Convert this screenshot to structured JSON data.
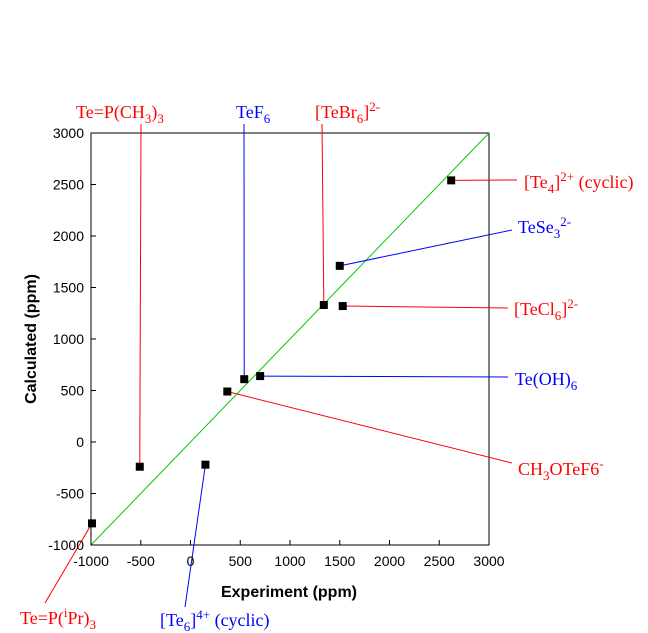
{
  "chart_data": {
    "type": "scatter",
    "xlabel": "Experiment  (ppm)",
    "ylabel": "Calculated  (ppm)",
    "xlim": [
      -1000,
      3000
    ],
    "ylim": [
      -1000,
      3000
    ],
    "xticks": [
      -1000,
      -500,
      0,
      500,
      1000,
      1500,
      2000,
      2500,
      3000
    ],
    "yticks": [
      -1000,
      -500,
      0,
      500,
      1000,
      1500,
      2000,
      2500,
      3000
    ],
    "reference_line": {
      "from": [
        -1000,
        -1000
      ],
      "to": [
        3000,
        3000
      ],
      "color": "#00cc00"
    },
    "points": [
      {
        "id": "te_pipr3",
        "x": -990,
        "y": -790
      },
      {
        "id": "te_pch3",
        "x": -510,
        "y": -240
      },
      {
        "id": "te6",
        "x": 150,
        "y": -220
      },
      {
        "id": "ch3otef6",
        "x": 370,
        "y": 490
      },
      {
        "id": "tef6",
        "x": 540,
        "y": 610
      },
      {
        "id": "teoh6",
        "x": 700,
        "y": 640
      },
      {
        "id": "tebr6",
        "x": 1340,
        "y": 1330
      },
      {
        "id": "tese3",
        "x": 1500,
        "y": 1710
      },
      {
        "id": "tecl6",
        "x": 1530,
        "y": 1320
      },
      {
        "id": "te4",
        "x": 2620,
        "y": 2540
      }
    ],
    "labels": [
      {
        "point": "te_pch3",
        "color": "#ff0000",
        "parts": [
          [
            "Te=P(CH",
            ""
          ],
          [
            "3",
            "sub"
          ],
          [
            ")",
            ""
          ],
          [
            "3",
            "sub"
          ]
        ]
      },
      {
        "point": "tef6",
        "color": "#0000ff",
        "parts": [
          [
            "TeF",
            ""
          ],
          [
            "6",
            "sub"
          ]
        ]
      },
      {
        "point": "tebr6",
        "color": "#ff0000",
        "parts": [
          [
            "[TeBr",
            ""
          ],
          [
            "6",
            "sub"
          ],
          [
            "]",
            ""
          ],
          [
            "2-",
            "sup"
          ]
        ]
      },
      {
        "point": "te4",
        "color": "#ff0000",
        "parts": [
          [
            "[Te",
            ""
          ],
          [
            "4",
            "sub"
          ],
          [
            "]",
            ""
          ],
          [
            "2+",
            "sup"
          ],
          [
            " (cyclic)",
            ""
          ]
        ]
      },
      {
        "point": "tese3",
        "color": "#0000ff",
        "parts": [
          [
            "TeSe",
            ""
          ],
          [
            "3",
            "sub"
          ],
          [
            "2-",
            "sup"
          ]
        ]
      },
      {
        "point": "tecl6",
        "color": "#ff0000",
        "parts": [
          [
            "[TeCl",
            ""
          ],
          [
            "6",
            "sub"
          ],
          [
            "]",
            ""
          ],
          [
            "2-",
            "sup"
          ]
        ]
      },
      {
        "point": "teoh6",
        "color": "#0000ff",
        "parts": [
          [
            "Te(OH)",
            ""
          ],
          [
            "6",
            "sub"
          ]
        ]
      },
      {
        "point": "ch3otef6",
        "color": "#ff0000",
        "parts": [
          [
            "CH",
            ""
          ],
          [
            "3",
            "sub"
          ],
          [
            "OTeF6",
            ""
          ],
          [
            "-",
            "sup"
          ]
        ]
      },
      {
        "point": "te6",
        "color": "#0000ff",
        "parts": [
          [
            "[Te",
            ""
          ],
          [
            "6",
            "sub"
          ],
          [
            "]",
            ""
          ],
          [
            "4+",
            "sup"
          ],
          [
            " (cyclic)",
            ""
          ]
        ]
      },
      {
        "point": "te_pipr3",
        "color": "#ff0000",
        "parts": [
          [
            "Te=P(",
            ""
          ],
          [
            "i",
            "sup"
          ],
          [
            "Pr)",
            ""
          ],
          [
            "3",
            "sub"
          ]
        ]
      }
    ]
  }
}
